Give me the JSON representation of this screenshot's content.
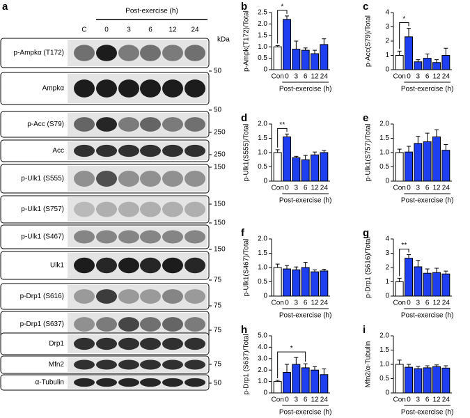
{
  "blot": {
    "panel": "a",
    "header": "Post-exercise (h)",
    "lanes": [
      "C",
      "0",
      "3",
      "6",
      "12",
      "24"
    ],
    "unit": "kDa",
    "rows": [
      "p-Ampkα (T172)",
      "Ampkα",
      "p-Acc (S79)",
      "Acc",
      "p-Ulk1 (S555)",
      "p-Ulk1 (S757)",
      "p-Ulk1 (S467)",
      "Ulk1",
      "p-Drp1 (S616)",
      "p-Drp1 (S637)",
      "Drp1",
      "Mfn2",
      "α-Tubulin"
    ],
    "markers": [
      50,
      50,
      250,
      250,
      150,
      150,
      150,
      150,
      75,
      75,
      75,
      75,
      50
    ]
  },
  "chart_data": [
    {
      "type": "bar",
      "panel": "b",
      "ylabel": "p-Ampk(T172)/Total",
      "xlabel": "Post-exercise (h)",
      "categories": [
        "Con",
        "0",
        "3",
        "6",
        "12",
        "24"
      ],
      "values": [
        1.0,
        2.2,
        0.9,
        0.85,
        0.7,
        1.1
      ],
      "errors": [
        0.05,
        0.15,
        0.35,
        0.1,
        0.15,
        0.25
      ],
      "colors": [
        "#ffffff",
        "#1e3ff0",
        "#1e3ff0",
        "#1e3ff0",
        "#1e3ff0",
        "#1e3ff0"
      ],
      "ylim": [
        0,
        2.5
      ],
      "yticks": [
        0,
        0.5,
        {
          "value": 1,
          "label": "1.0"
        },
        1.5,
        {
          "value": 2,
          "label": "2.0"
        },
        2.5
      ],
      "annotations": [
        {
          "text": "*",
          "between": [
            "Con",
            "0"
          ]
        }
      ]
    },
    {
      "type": "bar",
      "panel": "c",
      "ylabel": "p-Acc(S79)/Total",
      "xlabel": "Post-exercise (h)",
      "categories": [
        "Con",
        "0",
        "3",
        "6",
        "12",
        "24"
      ],
      "values": [
        1.0,
        2.3,
        0.55,
        0.8,
        0.5,
        1.0
      ],
      "errors": [
        0.3,
        0.6,
        0.15,
        0.3,
        0.2,
        0.5
      ],
      "colors": [
        "#ffffff",
        "#1e3ff0",
        "#1e3ff0",
        "#1e3ff0",
        "#1e3ff0",
        "#1e3ff0"
      ],
      "ylim": [
        0,
        4
      ],
      "yticks": [
        0,
        1,
        2,
        3,
        4
      ],
      "annotations": [
        {
          "text": "*",
          "between": [
            "Con",
            "0"
          ]
        }
      ]
    },
    {
      "type": "bar",
      "panel": "d",
      "ylabel": "p-Ulk1(S555)/Total",
      "xlabel": "Post-exercise (h)",
      "categories": [
        "Con",
        "0",
        "3",
        "6",
        "12",
        "24"
      ],
      "values": [
        1.0,
        1.55,
        0.82,
        0.75,
        0.92,
        1.0
      ],
      "errors": [
        0.1,
        0.1,
        0.05,
        0.15,
        0.1,
        0.07
      ],
      "colors": [
        "#ffffff",
        "#1e3ff0",
        "#1e3ff0",
        "#1e3ff0",
        "#1e3ff0",
        "#1e3ff0"
      ],
      "ylim": [
        0,
        2
      ],
      "yticks": [
        0,
        0.5,
        {
          "value": 1,
          "label": "1.0"
        },
        1.5,
        {
          "value": 2,
          "label": "2.0"
        }
      ],
      "annotations": [
        {
          "text": "**",
          "between": [
            "Con",
            "0"
          ]
        }
      ]
    },
    {
      "type": "bar",
      "panel": "e",
      "ylabel": "p-Ulk1(S757)/Total",
      "xlabel": "Post-exercise (h)",
      "categories": [
        "Con",
        "0",
        "3",
        "6",
        "12",
        "24"
      ],
      "values": [
        1.0,
        1.02,
        1.32,
        1.38,
        1.55,
        1.08
      ],
      "errors": [
        0.12,
        0.2,
        0.25,
        0.3,
        0.25,
        0.2
      ],
      "colors": [
        "#ffffff",
        "#1e3ff0",
        "#1e3ff0",
        "#1e3ff0",
        "#1e3ff0",
        "#1e3ff0"
      ],
      "ylim": [
        0,
        2
      ],
      "yticks": [
        0,
        0.5,
        {
          "value": 1,
          "label": "1.0"
        },
        1.5,
        {
          "value": 2,
          "label": "2.0"
        }
      ],
      "annotations": []
    },
    {
      "type": "bar",
      "panel": "f",
      "ylabel": "p-Ulk1(S467)/Total",
      "xlabel": "Post-exercise (h)",
      "categories": [
        "Con",
        "0",
        "3",
        "6",
        "12",
        "24"
      ],
      "values": [
        1.0,
        0.95,
        0.92,
        1.0,
        0.85,
        0.88
      ],
      "errors": [
        0.12,
        0.12,
        0.1,
        0.18,
        0.07,
        0.06
      ],
      "colors": [
        "#ffffff",
        "#1e3ff0",
        "#1e3ff0",
        "#1e3ff0",
        "#1e3ff0",
        "#1e3ff0"
      ],
      "ylim": [
        0,
        2
      ],
      "yticks": [
        0,
        0.5,
        {
          "value": 1,
          "label": "1.0"
        },
        1.5,
        {
          "value": 2,
          "label": "2.0"
        }
      ],
      "annotations": []
    },
    {
      "type": "bar",
      "panel": "g",
      "ylabel": "p-Drp1 (S616)/Total",
      "xlabel": "Post-exercise (h)",
      "categories": [
        "Con",
        "0",
        "3",
        "6",
        "12",
        "24"
      ],
      "values": [
        1.0,
        2.65,
        2.05,
        1.6,
        1.65,
        1.55
      ],
      "errors": [
        0.25,
        0.25,
        0.45,
        0.3,
        0.3,
        0.2
      ],
      "colors": [
        "#ffffff",
        "#1e3ff0",
        "#1e3ff0",
        "#1e3ff0",
        "#1e3ff0",
        "#1e3ff0"
      ],
      "ylim": [
        0,
        4
      ],
      "yticks": [
        0,
        1,
        2,
        3,
        4
      ],
      "annotations": [
        {
          "text": "**",
          "between": [
            "Con",
            "0"
          ]
        }
      ]
    },
    {
      "type": "bar",
      "panel": "h",
      "ylabel": "p-Drp1 (S637)/Total",
      "xlabel": "Post-exercise (h)",
      "categories": [
        "Con",
        "0",
        "3",
        "6",
        "12",
        "24"
      ],
      "values": [
        1.0,
        1.8,
        2.5,
        2.2,
        2.0,
        1.6
      ],
      "errors": [
        0.1,
        0.7,
        0.6,
        0.35,
        0.3,
        0.5
      ],
      "colors": [
        "#ffffff",
        "#1e3ff0",
        "#1e3ff0",
        "#1e3ff0",
        "#1e3ff0",
        "#1e3ff0"
      ],
      "ylim": [
        0,
        5
      ],
      "yticks": [
        0,
        {
          "value": 1,
          "label": "1.0"
        },
        {
          "value": 2,
          "label": "2.0"
        },
        {
          "value": 3,
          "label": "3.0"
        },
        {
          "value": 4,
          "label": "4.0"
        },
        {
          "value": 5,
          "label": "5.0"
        }
      ],
      "annotations": [
        {
          "text": "*",
          "between": [
            "Con",
            "6"
          ]
        }
      ]
    },
    {
      "type": "bar",
      "panel": "i",
      "ylabel": "Mfn2/α-Tubulin",
      "xlabel": "Post-exercise (h)",
      "categories": [
        "Con",
        "0",
        "3",
        "6",
        "12",
        "24"
      ],
      "values": [
        1.0,
        0.9,
        0.85,
        0.88,
        0.92,
        0.87
      ],
      "errors": [
        0.15,
        0.1,
        0.08,
        0.07,
        0.06,
        0.08
      ],
      "colors": [
        "#ffffff",
        "#1e3ff0",
        "#1e3ff0",
        "#1e3ff0",
        "#1e3ff0",
        "#1e3ff0"
      ],
      "ylim": [
        0,
        2
      ],
      "yticks": [
        0,
        0.5,
        {
          "value": 1,
          "label": "1.0"
        },
        1.5,
        {
          "value": 2,
          "label": "2.0"
        }
      ],
      "annotations": []
    }
  ]
}
